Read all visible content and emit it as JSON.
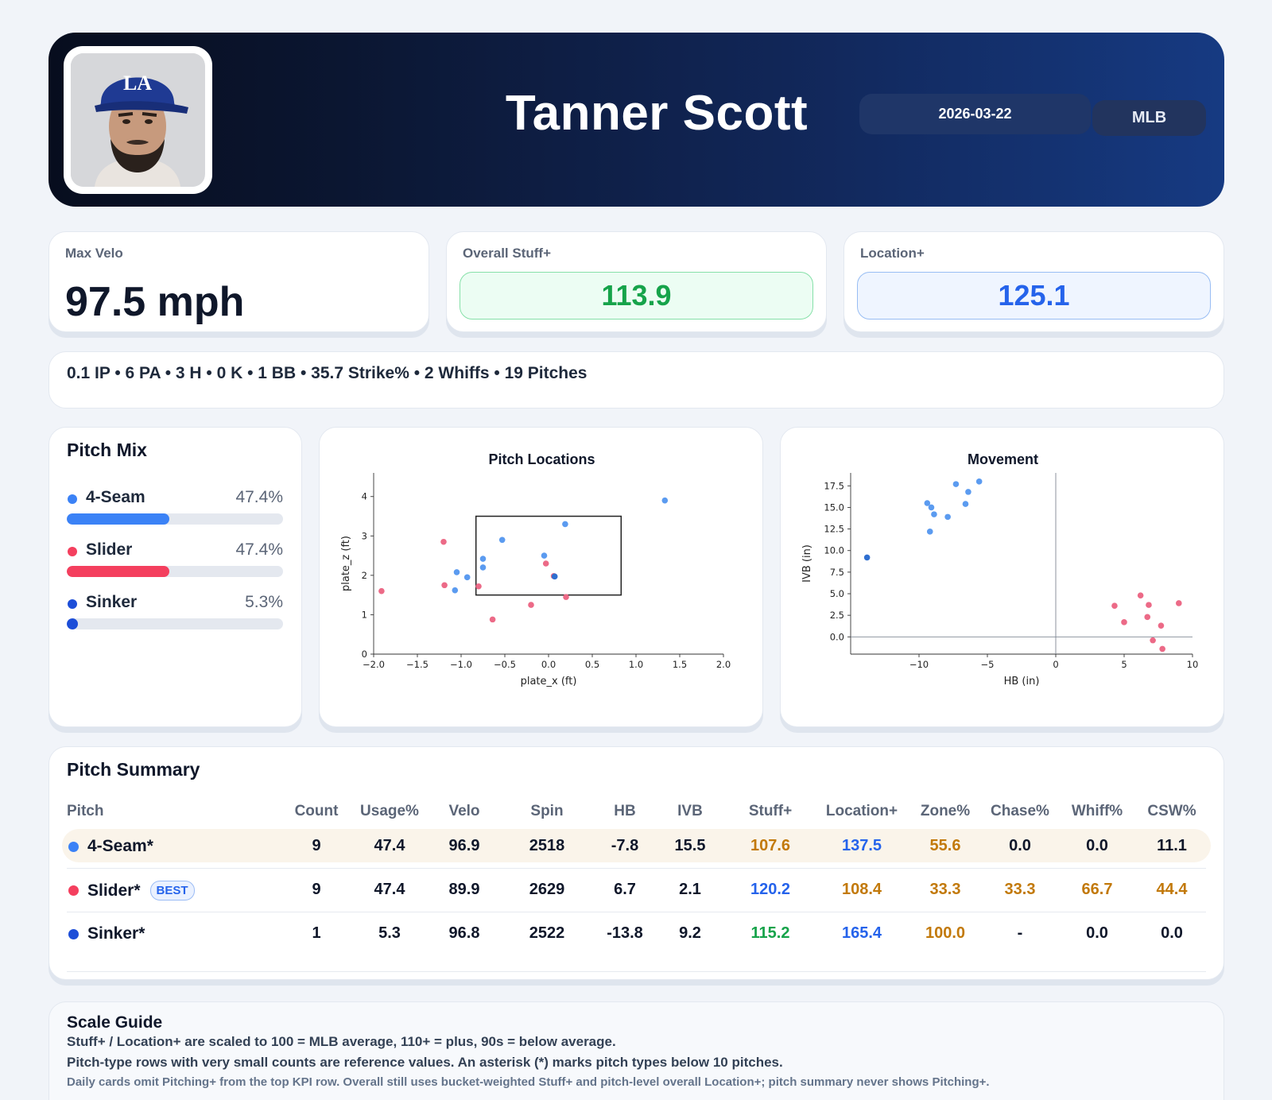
{
  "header": {
    "player_name": "Tanner Scott",
    "date": "2026-03-22",
    "league": "MLB",
    "team_logo_text": "LA"
  },
  "kpis": {
    "max_velo": {
      "label": "Max Velo",
      "value": "97.5 mph"
    },
    "stuff_plus": {
      "label": "Overall Stuff+",
      "value": "113.9"
    },
    "location_plus": {
      "label": "Location+",
      "value": "125.1"
    }
  },
  "statline": "0.1 IP • 6 PA • 3 H • 0 K • 1 BB • 35.7 Strike% • 2 Whiffs • 19 Pitches",
  "pitch_mix": {
    "title": "Pitch Mix",
    "items": [
      {
        "name": "4-Seam",
        "pct_label": "47.4%",
        "pct": 47.4,
        "color": "#3b82f6"
      },
      {
        "name": "Slider",
        "pct_label": "47.4%",
        "pct": 47.4,
        "color": "#f43f5e"
      },
      {
        "name": "Sinker",
        "pct_label": "5.3%",
        "pct": 5.3,
        "color": "#1d4ed8"
      }
    ]
  },
  "colors": {
    "four_seam": "#5b9bf0",
    "slider": "#ec6a87",
    "sinker": "#2f6fd0"
  },
  "chart_data": [
    {
      "type": "scatter",
      "title": "Pitch Locations",
      "xlabel": "plate_x (ft)",
      "ylabel": "plate_z (ft)",
      "xlim": [
        -2.0,
        2.0
      ],
      "ylim": [
        0,
        4.6
      ],
      "xticks": [
        "−2.0",
        "−1.5",
        "−1.0",
        "−0.5",
        "0.0",
        "0.5",
        "1.0",
        "1.5",
        "2.0"
      ],
      "yticks": [
        "0",
        "1",
        "2",
        "3",
        "4"
      ],
      "strike_zone": {
        "x": [
          -0.83,
          0.83
        ],
        "z": [
          1.5,
          3.5
        ]
      },
      "series": [
        {
          "pitch": "4-Seam",
          "points": [
            [
              -1.05,
              2.08
            ],
            [
              -1.07,
              1.62
            ],
            [
              -0.93,
              1.95
            ],
            [
              -0.75,
              2.42
            ],
            [
              -0.75,
              2.2
            ],
            [
              -0.53,
              2.9
            ],
            [
              -0.05,
              2.5
            ],
            [
              0.19,
              3.3
            ],
            [
              1.33,
              3.9
            ]
          ]
        },
        {
          "pitch": "Slider",
          "points": [
            [
              -1.91,
              1.6
            ],
            [
              -1.2,
              2.85
            ],
            [
              -1.19,
              1.75
            ],
            [
              -0.8,
              1.72
            ],
            [
              -0.64,
              0.88
            ],
            [
              -0.2,
              1.25
            ],
            [
              -0.03,
              2.3
            ],
            [
              0.06,
              1.98
            ],
            [
              0.2,
              1.45
            ]
          ]
        },
        {
          "pitch": "Sinker",
          "points": [
            [
              0.07,
              1.97
            ]
          ]
        }
      ]
    },
    {
      "type": "scatter",
      "title": "Movement",
      "xlabel": "HB (in)",
      "ylabel": "IVB (in)",
      "xlim": [
        -15,
        10
      ],
      "ylim": [
        -2,
        19
      ],
      "xticks": [
        "−10",
        "−5",
        "0",
        "5",
        "10"
      ],
      "yticks": [
        "0.0",
        "2.5",
        "5.0",
        "7.5",
        "10.0",
        "12.5",
        "15.0",
        "17.5"
      ],
      "series": [
        {
          "pitch": "4-Seam",
          "points": [
            [
              -9.4,
              15.5
            ],
            [
              -9.1,
              15.0
            ],
            [
              -8.9,
              14.2
            ],
            [
              -9.2,
              12.2
            ],
            [
              -7.9,
              13.9
            ],
            [
              -7.3,
              17.7
            ],
            [
              -6.6,
              15.4
            ],
            [
              -6.4,
              16.8
            ],
            [
              -5.6,
              18.0
            ]
          ]
        },
        {
          "pitch": "Slider",
          "points": [
            [
              4.3,
              3.6
            ],
            [
              5.0,
              1.7
            ],
            [
              6.2,
              4.8
            ],
            [
              6.7,
              2.3
            ],
            [
              6.8,
              3.7
            ],
            [
              7.1,
              -0.4
            ],
            [
              7.7,
              1.3
            ],
            [
              7.8,
              -1.4
            ],
            [
              9.0,
              3.9
            ]
          ]
        },
        {
          "pitch": "Sinker",
          "points": [
            [
              -13.8,
              9.2
            ]
          ]
        }
      ]
    }
  ],
  "summary": {
    "title": "Pitch Summary",
    "columns": [
      "Pitch",
      "Count",
      "Usage%",
      "Velo",
      "Spin",
      "HB",
      "IVB",
      "Stuff+",
      "Location+",
      "Zone%",
      "Chase%",
      "Whiff%",
      "CSW%"
    ],
    "rows": [
      {
        "pitch": "4-Seam*",
        "badge": "",
        "color": "#3b82f6",
        "values": [
          "9",
          "47.4",
          "96.9",
          "2518",
          "-7.8",
          "15.5",
          "107.6",
          "137.5",
          "55.6",
          "0.0",
          "0.0",
          "11.1"
        ]
      },
      {
        "pitch": "Slider*",
        "badge": "BEST",
        "color": "#f43f5e",
        "values": [
          "9",
          "47.4",
          "89.9",
          "2629",
          "6.7",
          "2.1",
          "120.2",
          "108.4",
          "33.3",
          "33.3",
          "66.7",
          "44.4"
        ]
      },
      {
        "pitch": "Sinker*",
        "badge": "",
        "color": "#1d4ed8",
        "values": [
          "1",
          "5.3",
          "96.8",
          "2522",
          "-13.8",
          "9.2",
          "115.2",
          "165.4",
          "100.0",
          "-",
          "0.0",
          "0.0"
        ]
      }
    ]
  },
  "guide": {
    "title": "Scale Guide",
    "line1": "Stuff+ / Location+ are scaled to 100 = MLB average, 110+ = plus, 90s = below average.",
    "line2": "Pitch-type rows with very small counts are reference values. An asterisk (*) marks pitch types below 10 pitches.",
    "line3": "Daily cards omit Pitching+ from the top KPI row. Overall still uses bucket-weighted Stuff+ and pitch-level overall Location+; pitch summary never shows Pitching+."
  }
}
